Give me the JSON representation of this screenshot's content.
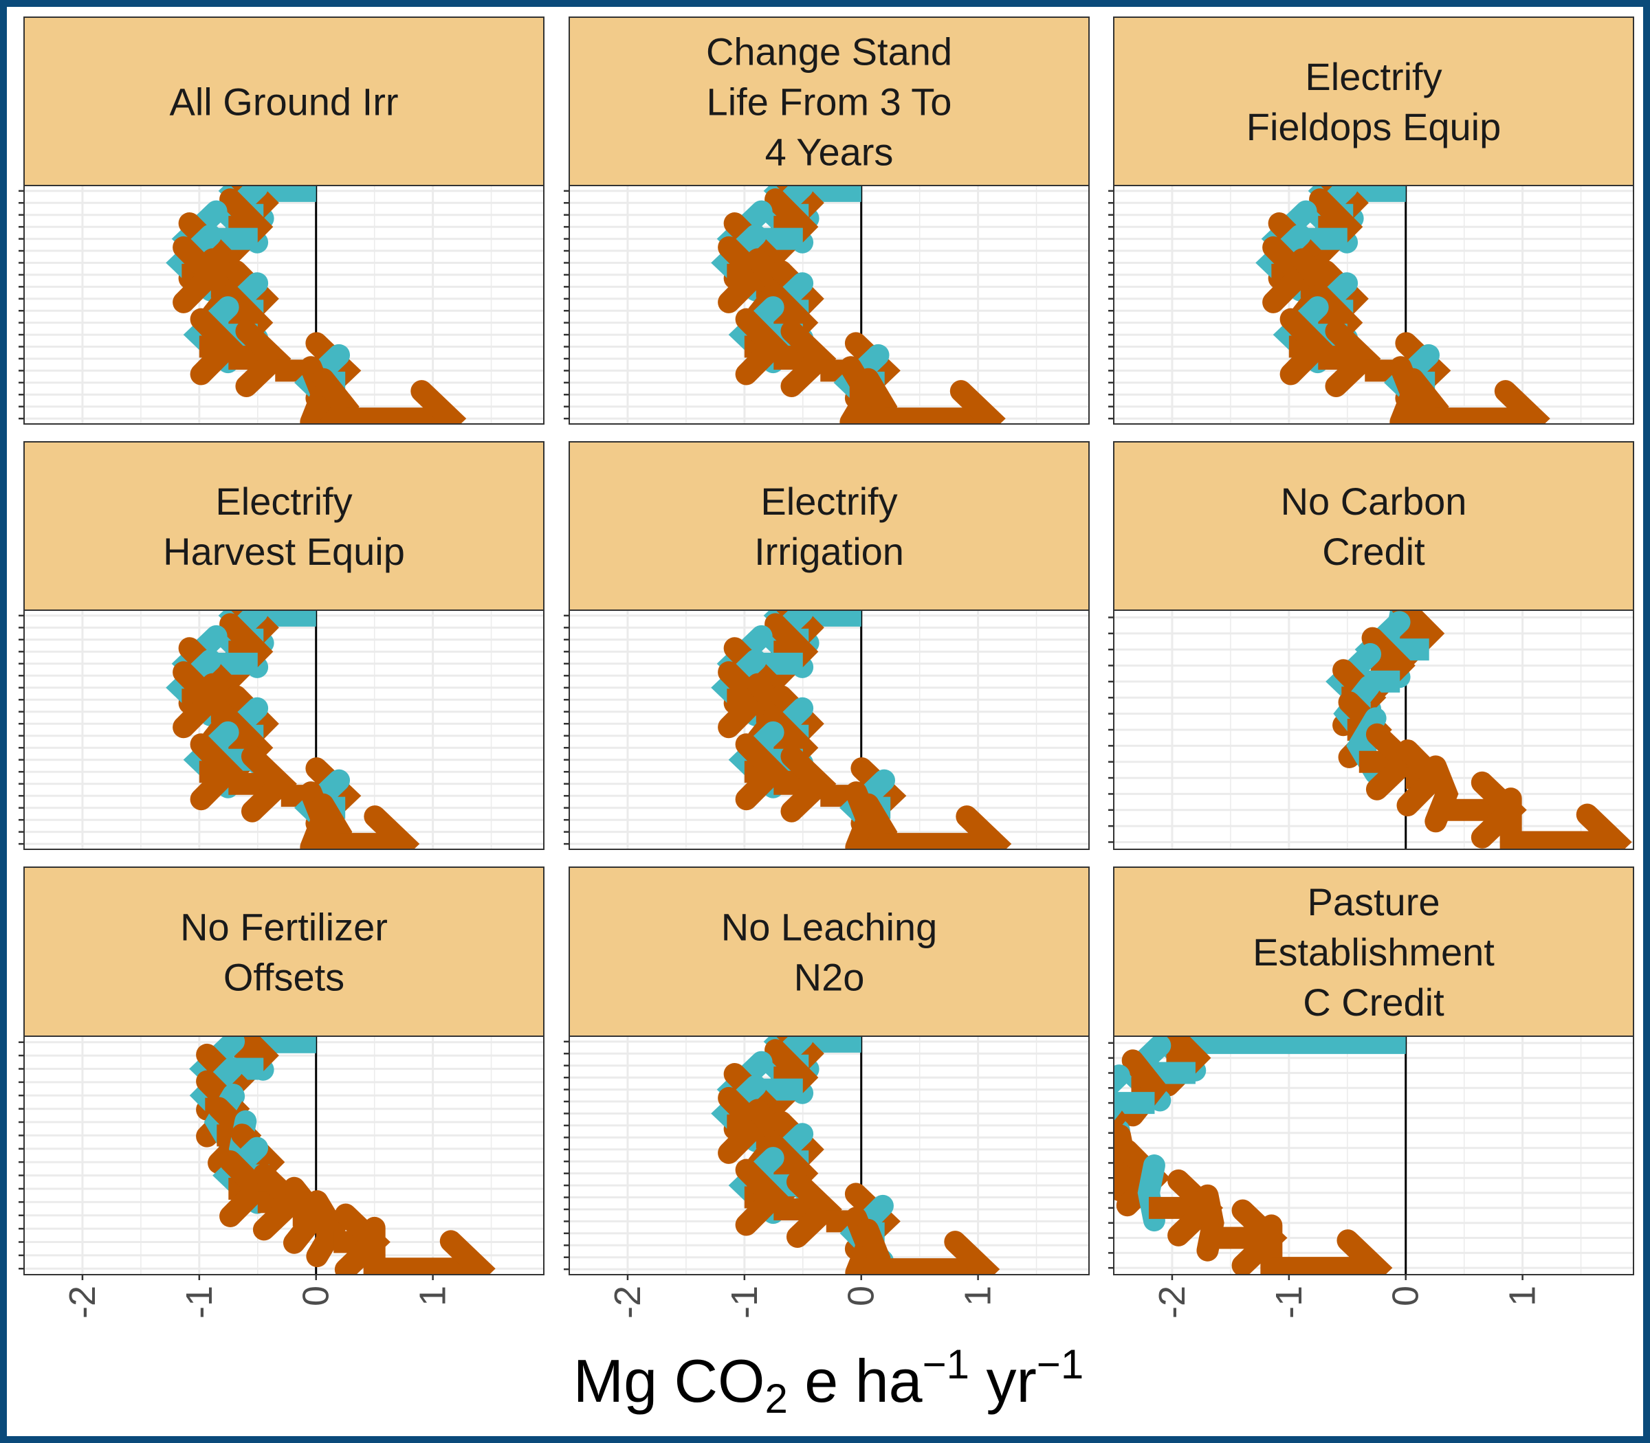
{
  "colors": {
    "frame": "#0a4a7a",
    "strip_fill": "#f2cb8a",
    "negative_arrow": "#44b7c2",
    "positive_arrow": "#bd5800",
    "zero_line": "#000000",
    "grid": "#ebebeb"
  },
  "x_axis_title": {
    "main": "Mg CO",
    "sub": "2",
    "rest": " e ha",
    "sup1": "−1",
    "rest2": " yr",
    "sup2": "−1"
  },
  "chart_data": {
    "type": "waterfall-arrows",
    "xlim": [
      -2.5,
      1.95
    ],
    "x_ticks": [
      -2,
      -1,
      0,
      1
    ],
    "x_tick_labels": [
      "-2",
      "-1",
      "0",
      "1"
    ],
    "grid": true,
    "panels": [
      {
        "title_lines": [
          "All Ground Irr"
        ],
        "cumulative": [
          0,
          -0.7,
          -0.45,
          -0.75,
          -0.5,
          -1.1,
          -0.85,
          -1.15,
          -0.9,
          -0.7,
          -0.45,
          -0.75,
          -0.5,
          -1.0,
          -0.75,
          -0.35,
          0.25,
          -0.05,
          0.05,
          0.25,
          1.15
        ]
      },
      {
        "title_lines": [
          "Change Stand",
          "Life From 3 To",
          "4 Years"
        ],
        "cumulative": [
          0,
          -0.7,
          -0.45,
          -0.75,
          -0.5,
          -1.1,
          -0.85,
          -1.15,
          -0.9,
          -0.7,
          -0.45,
          -0.75,
          -0.5,
          -1.0,
          -0.75,
          -0.35,
          0.2,
          -0.1,
          0.05,
          0.2,
          1.1
        ]
      },
      {
        "title_lines": [
          "Electrify",
          "Fieldops Equip"
        ],
        "cumulative": [
          0,
          -0.7,
          -0.45,
          -0.75,
          -0.5,
          -1.1,
          -0.85,
          -1.15,
          -0.9,
          -0.7,
          -0.45,
          -0.75,
          -0.5,
          -1.0,
          -0.75,
          -0.35,
          0.25,
          -0.05,
          0.05,
          0.25,
          1.1
        ]
      },
      {
        "title_lines": [
          "Electrify",
          "Harvest Equip"
        ],
        "cumulative": [
          0,
          -0.7,
          -0.45,
          -0.75,
          -0.5,
          -1.1,
          -0.85,
          -1.15,
          -0.9,
          -0.7,
          -0.45,
          -0.75,
          -0.5,
          -1.0,
          -0.75,
          -0.3,
          0.25,
          -0.05,
          0.05,
          0.2,
          0.75
        ]
      },
      {
        "title_lines": [
          "Electrify",
          "Irrigation"
        ],
        "cumulative": [
          0,
          -0.7,
          -0.45,
          -0.75,
          -0.5,
          -1.1,
          -0.85,
          -1.15,
          -0.9,
          -0.7,
          -0.45,
          -0.75,
          -0.5,
          -1.0,
          -0.75,
          -0.35,
          0.25,
          -0.05,
          0.05,
          0.2,
          1.15
        ]
      },
      {
        "title_lines": [
          "No Carbon",
          "Credit"
        ],
        "cumulative": [
          0,
          -0.05,
          0.2,
          -0.3,
          -0.05,
          -0.55,
          -0.3,
          -0.5,
          -0.25,
          -0.4,
          0.0,
          0.25,
          0.35,
          0.9,
          0.9,
          1.8
        ]
      },
      {
        "title_lines": [
          "No Fertilizer",
          "Offsets"
        ],
        "cumulative": [
          0,
          -0.7,
          -0.45,
          -0.95,
          -0.7,
          -0.95,
          -0.7,
          -0.85,
          -0.6,
          -0.65,
          -0.4,
          -0.75,
          -0.5,
          -0.2,
          0.0,
          0.15,
          0.5,
          0.5,
          1.4
        ]
      },
      {
        "title_lines": [
          "No Leaching",
          "N2o"
        ],
        "cumulative": [
          0,
          -0.7,
          -0.45,
          -0.75,
          -0.5,
          -1.1,
          -0.85,
          -1.15,
          -0.9,
          -0.7,
          -0.45,
          -0.75,
          -0.5,
          -1.0,
          -0.75,
          -0.3,
          0.2,
          -0.05,
          0.05,
          0.15,
          1.05
        ]
      },
      {
        "title_lines": [
          "Pasture",
          "Establishment",
          "C Credit"
        ],
        "cumulative": [
          0,
          -2.05,
          -1.8,
          -2.35,
          -2.15,
          -2.7,
          -2.5,
          -2.7,
          -2.45,
          -2.4,
          -2.15,
          -2.2,
          -1.7,
          -1.65,
          -1.15,
          -1.15,
          -0.25
        ]
      }
    ]
  }
}
